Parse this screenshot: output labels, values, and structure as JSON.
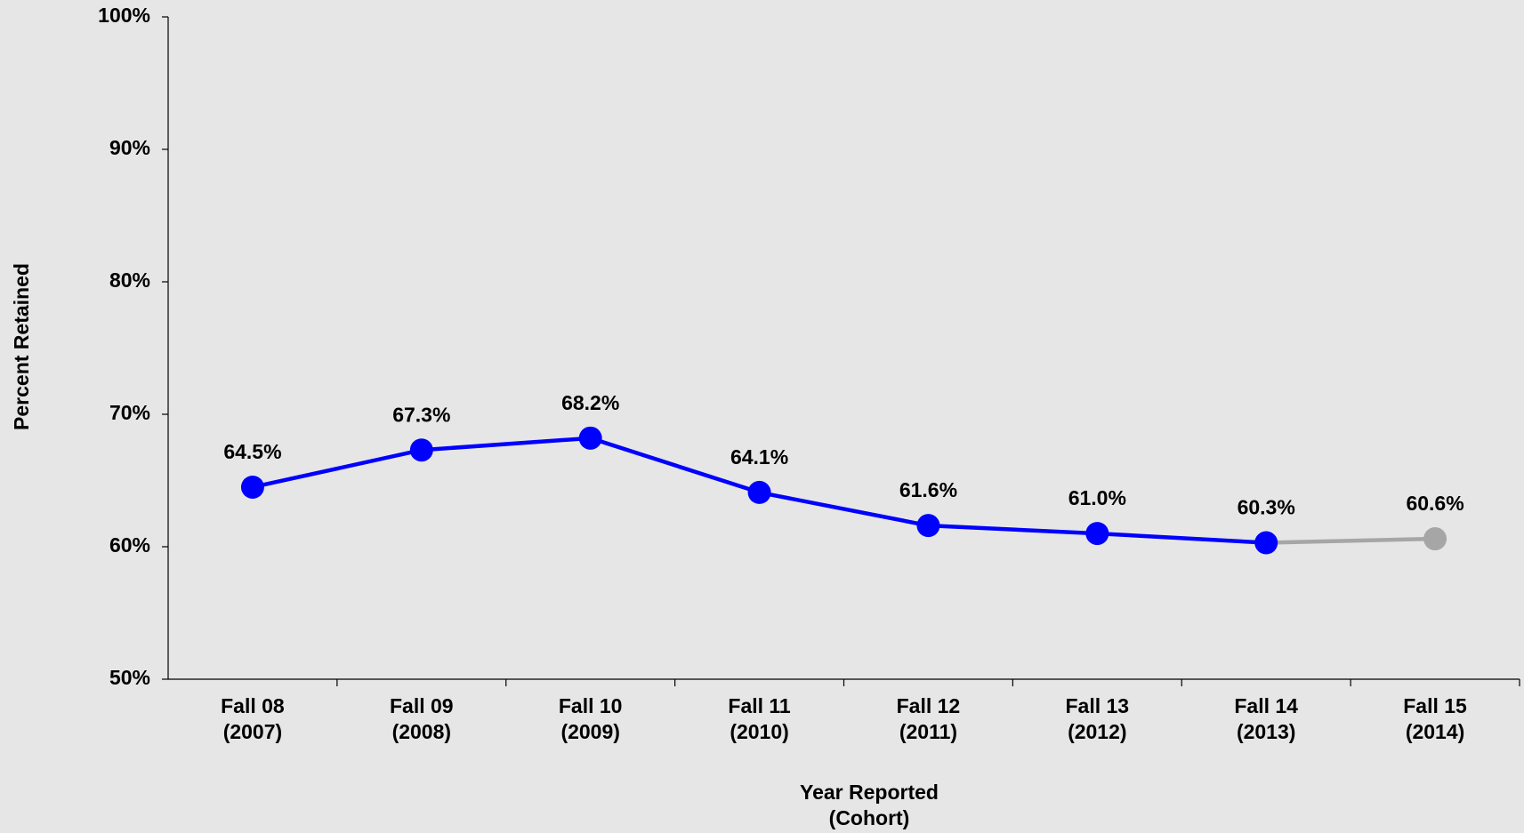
{
  "chart_data": {
    "type": "line",
    "y_label": "Percent Retained",
    "x_label": "Year Reported\n(Cohort)",
    "categories": [
      "Fall 08\n(2007)",
      "Fall 09\n(2008)",
      "Fall 10\n(2009)",
      "Fall 11\n(2010)",
      "Fall 12\n(2011)",
      "Fall 13\n(2012)",
      "Fall 14\n(2013)",
      "Fall 15\n(2014)"
    ],
    "series": [
      {
        "values": [
          64.5,
          67.3,
          68.2,
          64.1,
          61.6,
          61.0,
          60.3,
          60.6
        ],
        "value_labels": [
          "64.5%",
          "67.3%",
          "68.2%",
          "64.1%",
          "61.6%",
          "61.0%",
          "60.3%",
          "60.6%"
        ],
        "point_colors": [
          "#0000ff",
          "#0000ff",
          "#0000ff",
          "#0000ff",
          "#0000ff",
          "#0000ff",
          "#0000ff",
          "#a6a6a6"
        ]
      }
    ],
    "ylim": [
      50,
      100
    ],
    "yticks": [
      {
        "value": 50,
        "label": "50%"
      },
      {
        "value": 60,
        "label": "60%"
      },
      {
        "value": 70,
        "label": "70%"
      },
      {
        "value": 80,
        "label": "80%"
      },
      {
        "value": 90,
        "label": "90%"
      },
      {
        "value": 100,
        "label": "100%"
      }
    ],
    "grid": false
  }
}
